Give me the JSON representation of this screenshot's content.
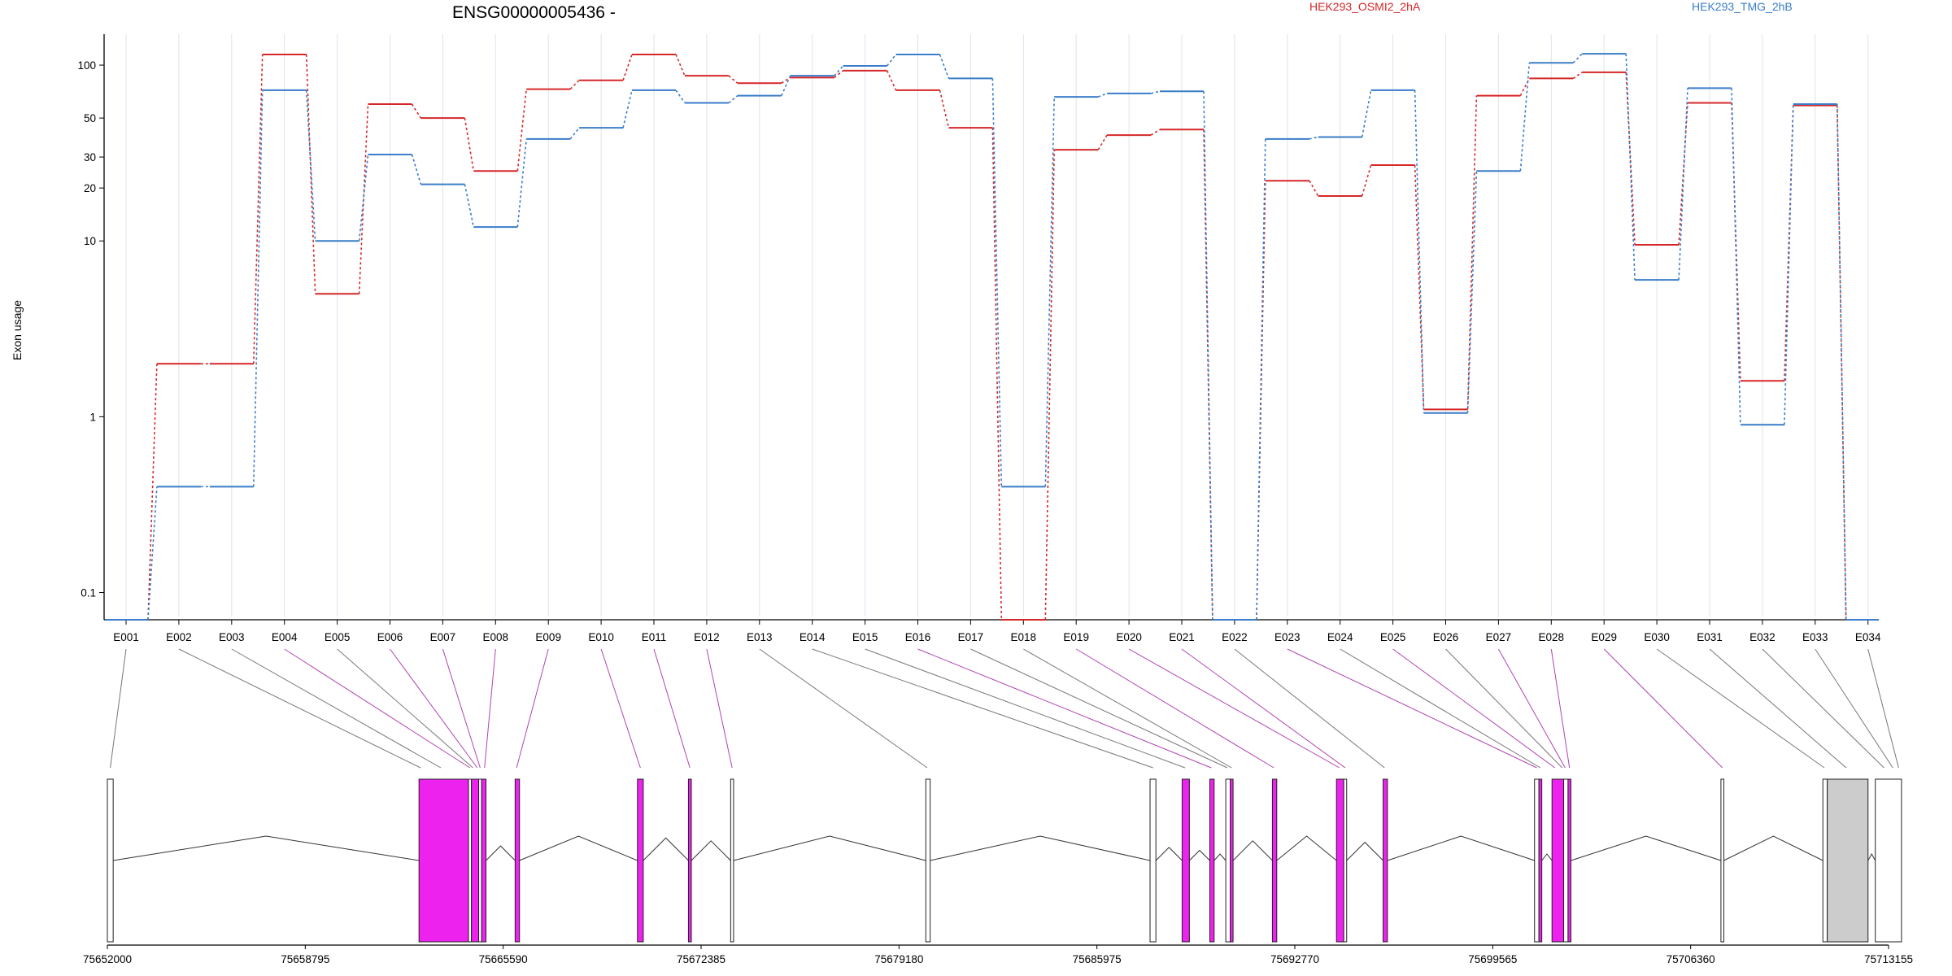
{
  "chart_data": {
    "type": "line",
    "title": "ENSG00000005436 -",
    "ylabel": "Exon usage",
    "yscale": "log",
    "ylim": [
      0.07,
      150
    ],
    "yticks": [
      "0.1",
      "1",
      "10",
      "20",
      "30",
      "50",
      "100"
    ],
    "ytick_values": [
      0.1,
      1,
      10,
      20,
      30,
      50,
      100
    ],
    "categories": [
      "E001",
      "E002",
      "E003",
      "E004",
      "E005",
      "E006",
      "E007",
      "E008",
      "E009",
      "E010",
      "E011",
      "E012",
      "E013",
      "E014",
      "E015",
      "E016",
      "E017",
      "E018",
      "E019",
      "E020",
      "E021",
      "E022",
      "E023",
      "E024",
      "E025",
      "E026",
      "E027",
      "E028",
      "E029",
      "E030",
      "E031",
      "E032",
      "E033",
      "E034"
    ],
    "legend": [
      "HEK293_OSMI2_2hA",
      "HEK293_TMG_2hB"
    ],
    "legend_placement": "top-right",
    "grid": "vertical",
    "series": [
      {
        "name": "HEK293_OSMI2_2hA",
        "color": "#d62728",
        "values": [
          0.07,
          2,
          2,
          115,
          5,
          60,
          50,
          25,
          73,
          82,
          115,
          87,
          79,
          85,
          93,
          72,
          44,
          0.07,
          33,
          40,
          43,
          0.07,
          22,
          18,
          27,
          1.1,
          67,
          84,
          91,
          9.5,
          61,
          1.6,
          59,
          0.07
        ]
      },
      {
        "name": "HEK293_TMG_2hB",
        "color": "#3a7dc9",
        "values": [
          0.07,
          0.4,
          0.4,
          72,
          10,
          31,
          21,
          12,
          38,
          44,
          72,
          61,
          67,
          87,
          99,
          115,
          84,
          0.4,
          66,
          69,
          71,
          0.07,
          38,
          39,
          72,
          1.05,
          25,
          103,
          116,
          6,
          74,
          0.9,
          60,
          0.07
        ]
      }
    ],
    "gene_axis": {
      "ticks": [
        "75652000",
        "75658795",
        "75665590",
        "75672385",
        "75679180",
        "75685975",
        "75692770",
        "75699565",
        "75706360",
        "75713155"
      ],
      "tick_values": [
        75652000,
        75658795,
        75665590,
        75672385,
        75679180,
        75685975,
        75692770,
        75699565,
        75706360,
        75713155
      ],
      "range": [
        75652000,
        75713155
      ],
      "exon_color_differential": "#ee22ee",
      "exon_color_utr": "#cccccc",
      "exons": [
        {
          "start": 75652000,
          "end": 75652200,
          "fill": "white"
        },
        {
          "start": 75662700,
          "end": 75664400,
          "fill": "magenta"
        },
        {
          "start": 75664400,
          "end": 75664500,
          "fill": "white"
        },
        {
          "start": 75664500,
          "end": 75664750,
          "fill": "magenta"
        },
        {
          "start": 75664750,
          "end": 75664850,
          "fill": "white"
        },
        {
          "start": 75664850,
          "end": 75665000,
          "fill": "magenta"
        },
        {
          "start": 75666000,
          "end": 75666150,
          "fill": "magenta"
        },
        {
          "start": 75670200,
          "end": 75670400,
          "fill": "magenta"
        },
        {
          "start": 75671950,
          "end": 75672050,
          "fill": "magenta"
        },
        {
          "start": 75673400,
          "end": 75673500,
          "fill": "white"
        },
        {
          "start": 75680100,
          "end": 75680250,
          "fill": "white"
        },
        {
          "start": 75687800,
          "end": 75688000,
          "fill": "white"
        },
        {
          "start": 75688900,
          "end": 75689150,
          "fill": "magenta"
        },
        {
          "start": 75689850,
          "end": 75690000,
          "fill": "magenta"
        },
        {
          "start": 75690400,
          "end": 75690550,
          "fill": "white"
        },
        {
          "start": 75690550,
          "end": 75690650,
          "fill": "magenta"
        },
        {
          "start": 75692000,
          "end": 75692150,
          "fill": "magenta"
        },
        {
          "start": 75694200,
          "end": 75694450,
          "fill": "magenta"
        },
        {
          "start": 75694450,
          "end": 75694550,
          "fill": "white"
        },
        {
          "start": 75695800,
          "end": 75695950,
          "fill": "magenta"
        },
        {
          "start": 75701000,
          "end": 75701150,
          "fill": "white"
        },
        {
          "start": 75701150,
          "end": 75701250,
          "fill": "magenta"
        },
        {
          "start": 75701600,
          "end": 75702000,
          "fill": "magenta"
        },
        {
          "start": 75702000,
          "end": 75702150,
          "fill": "white"
        },
        {
          "start": 75702150,
          "end": 75702250,
          "fill": "magenta"
        },
        {
          "start": 75707400,
          "end": 75707500,
          "fill": "white"
        },
        {
          "start": 75710900,
          "end": 75711050,
          "fill": "white"
        },
        {
          "start": 75711050,
          "end": 75712450,
          "fill": "grey"
        },
        {
          "start": 75712700,
          "end": 75713600,
          "fill": "white"
        }
      ],
      "exon_bins": [
        75652100,
        75662750,
        75663450,
        75664450,
        75664550,
        75664700,
        75664800,
        75664950,
        75666050,
        75670300,
        75672000,
        75673450,
        75680150,
        75687900,
        75689000,
        75689900,
        75690450,
        75690600,
        75692050,
        75694300,
        75694500,
        75695850,
        75701080,
        75701200,
        75701700,
        75701950,
        75702050,
        75702200,
        75707450,
        75710950,
        75711700,
        75713000,
        75713300,
        75713500
      ]
    }
  }
}
